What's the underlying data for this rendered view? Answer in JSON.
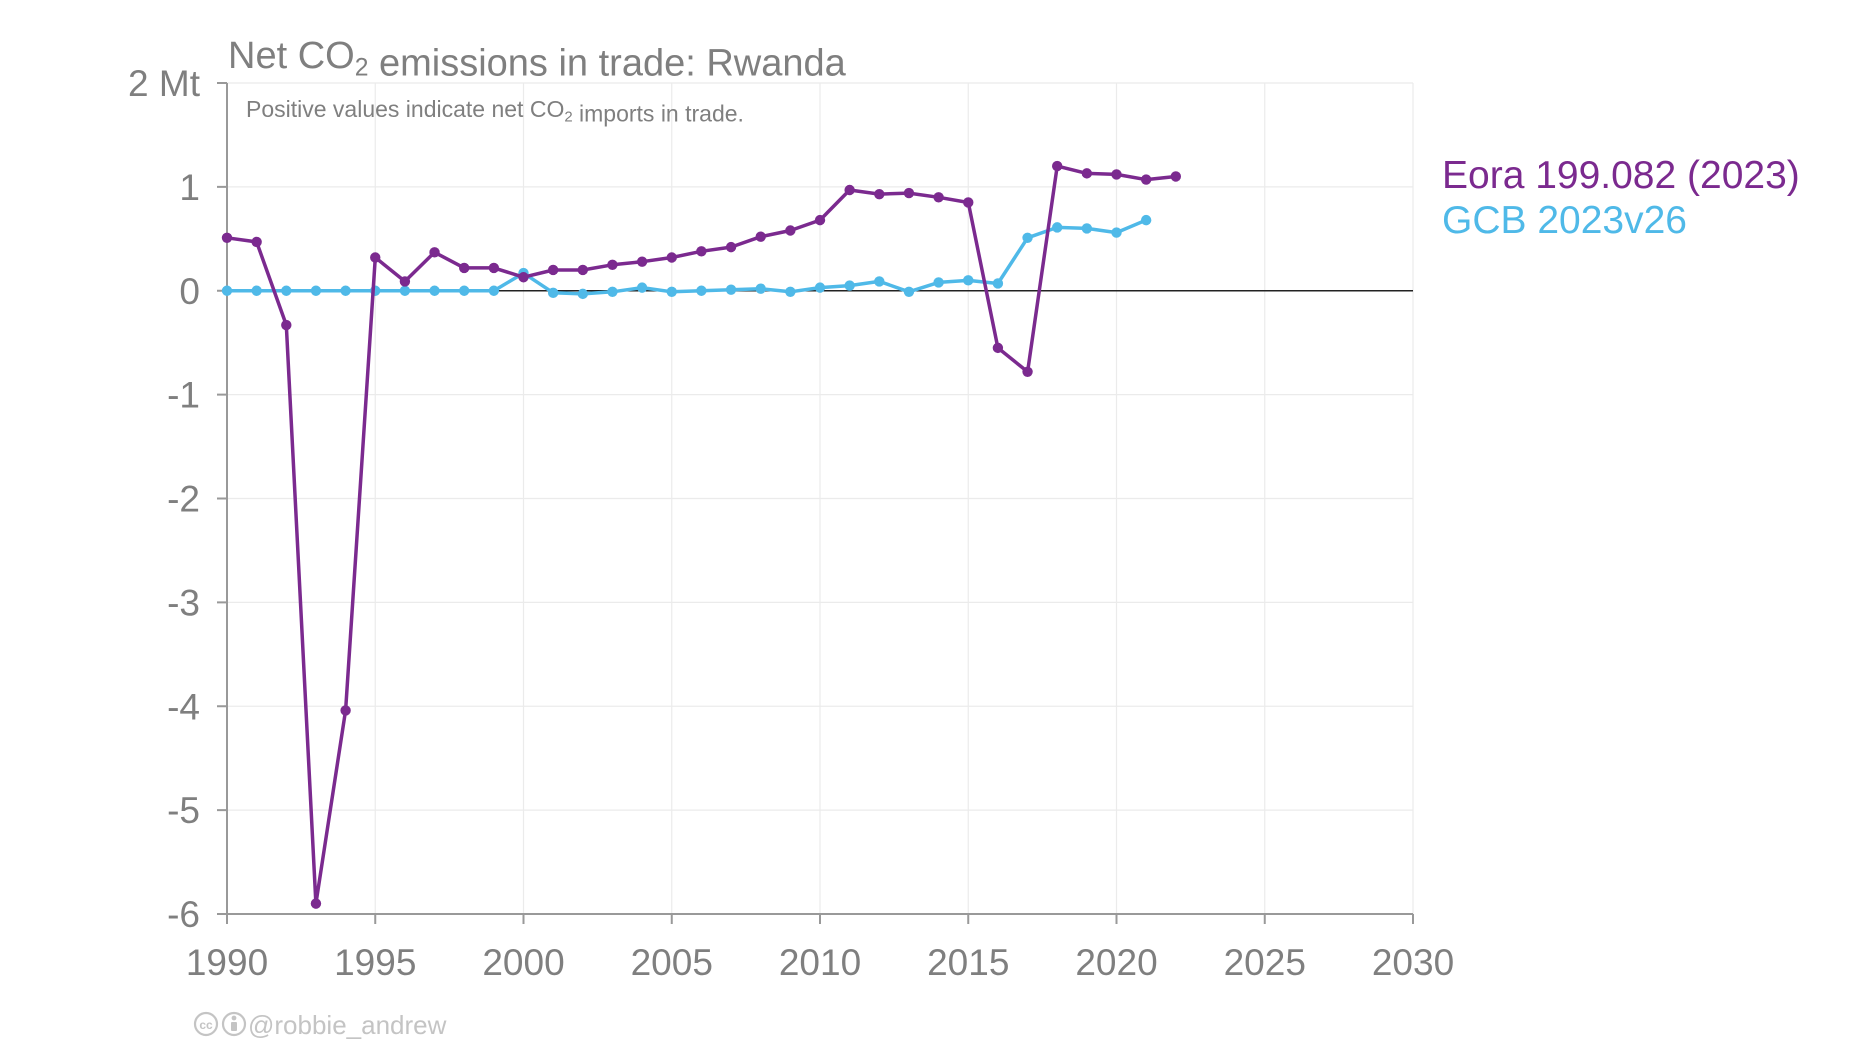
{
  "chart_data": {
    "type": "line",
    "title": "Net CO₂ emissions in trade: Rwanda",
    "subtitle": "Positive values indicate net CO₂ imports in trade.",
    "unit": "Mt",
    "xlim": [
      1990,
      2030
    ],
    "ylim": [
      -6,
      2
    ],
    "x_ticks": [
      "1990",
      "1995",
      "2000",
      "2005",
      "2010",
      "2015",
      "2020",
      "2025",
      "2030"
    ],
    "y_ticks": [
      "2 Mt",
      "1",
      "0",
      "-1",
      "-2",
      "-3",
      "-4",
      "-5",
      "-6"
    ],
    "grid": true,
    "legend_position": "right",
    "series": [
      {
        "name": "Eora 199.082 (2023)",
        "color": "#7b2a8f",
        "x": [
          1990,
          1991,
          1992,
          1993,
          1994,
          1995,
          1996,
          1997,
          1998,
          1999,
          2000,
          2001,
          2002,
          2003,
          2004,
          2005,
          2006,
          2007,
          2008,
          2009,
          2010,
          2011,
          2012,
          2013,
          2014,
          2015,
          2016,
          2017,
          2018,
          2019,
          2020,
          2021,
          2022
        ],
        "y": [
          0.51,
          0.47,
          -0.33,
          -5.9,
          -4.04,
          0.32,
          0.09,
          0.37,
          0.22,
          0.22,
          0.13,
          0.2,
          0.2,
          0.25,
          0.28,
          0.32,
          0.38,
          0.42,
          0.52,
          0.58,
          0.68,
          0.97,
          0.93,
          0.94,
          0.9,
          0.85,
          -0.55,
          -0.78,
          1.2,
          1.13,
          1.12,
          1.07,
          1.1
        ]
      },
      {
        "name": "GCB 2023v26",
        "color": "#4fb9e8",
        "x": [
          1990,
          1991,
          1992,
          1993,
          1994,
          1995,
          1996,
          1997,
          1998,
          1999,
          2000,
          2001,
          2002,
          2003,
          2004,
          2005,
          2006,
          2007,
          2008,
          2009,
          2010,
          2011,
          2012,
          2013,
          2014,
          2015,
          2016,
          2017,
          2018,
          2019,
          2020,
          2021
        ],
        "y": [
          0,
          0,
          0,
          0,
          0,
          0,
          0,
          0,
          0,
          0,
          0.17,
          -0.02,
          -0.03,
          -0.01,
          0.03,
          -0.01,
          0,
          0.01,
          0.02,
          -0.01,
          0.03,
          0.05,
          0.09,
          -0.01,
          0.08,
          0.1,
          0.07,
          0.51,
          0.61,
          0.6,
          0.56,
          0.68
        ]
      }
    ]
  },
  "credit": {
    "icons": [
      "creative-commons-icon",
      "attribution-icon"
    ],
    "handle": "@robbie_andrew"
  }
}
